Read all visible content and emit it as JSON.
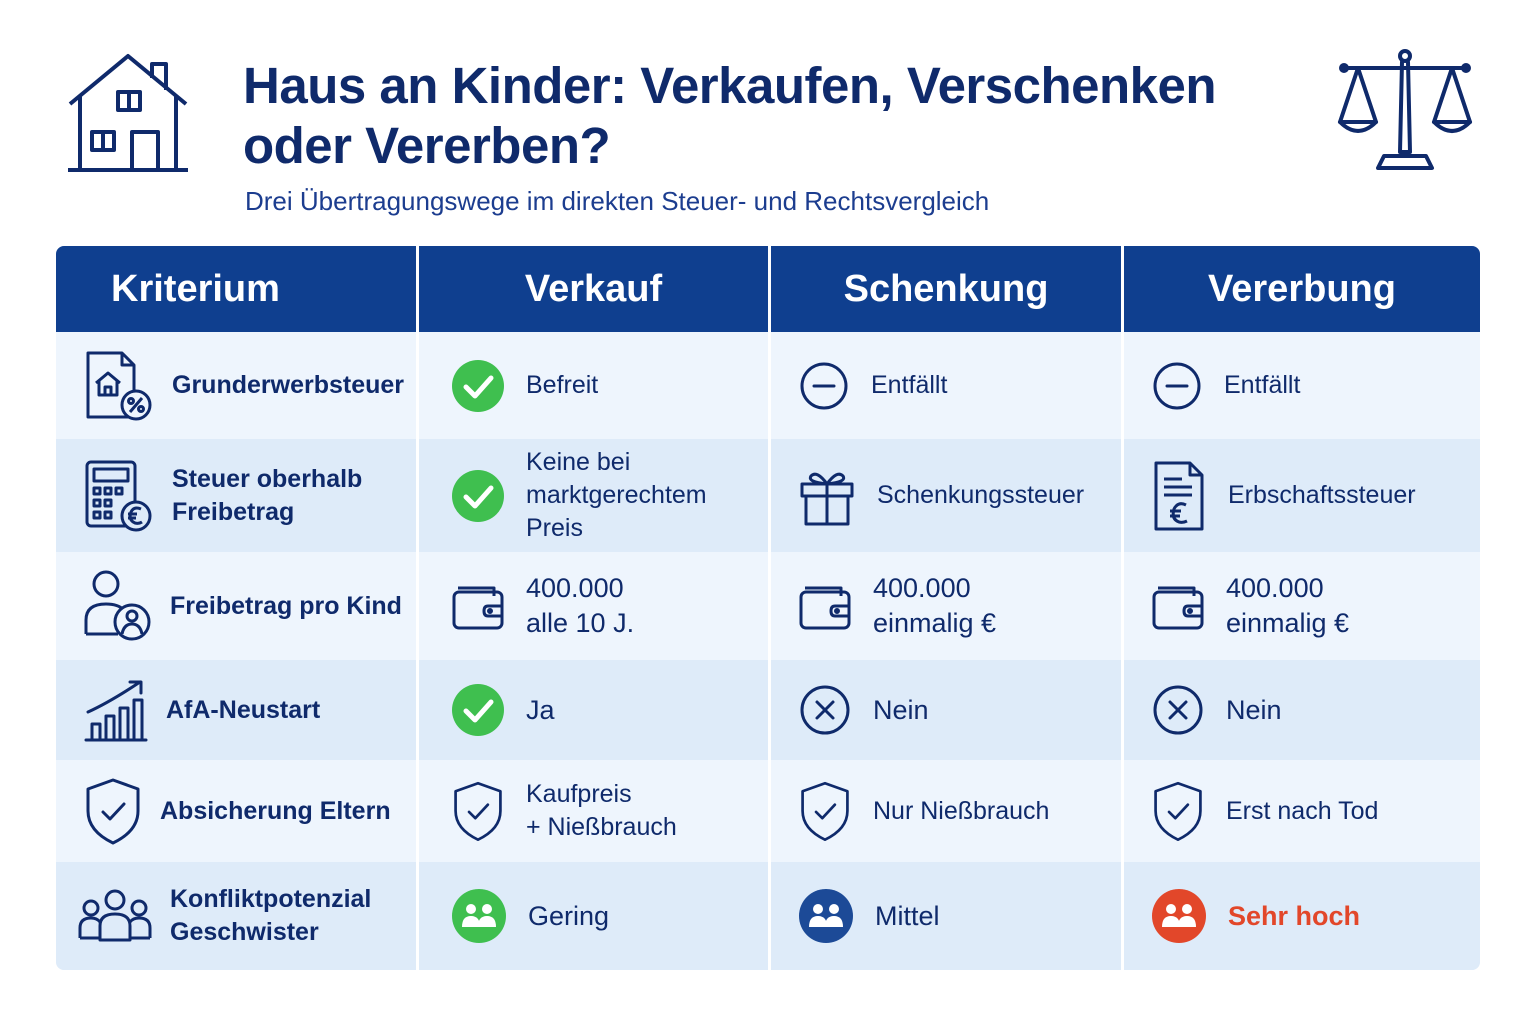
{
  "header": {
    "title": "Haus an Kinder: Verkaufen, Verschenken oder Vererben?",
    "subtitle": "Drei Übertragungswege im direkten Steuer- und Rechtsvergleich",
    "left_icon": "house-icon",
    "right_icon": "scale-icon"
  },
  "colors": {
    "navy": "#0f3f8f",
    "text": "#0f2a6b",
    "green": "#3fbf4f",
    "red": "#e2472a",
    "row_light": "#eef5fd",
    "row_dark": "#deebf9"
  },
  "table": {
    "columns": [
      "Kriterium",
      "Verkauf",
      "Schenkung",
      "Vererbung"
    ],
    "rows": [
      {
        "criterion": "Grunderwerbsteuer",
        "criterion_icon": "document-house-percent-icon",
        "cells": [
          {
            "icon": "check-green-icon",
            "text": "Befreit"
          },
          {
            "icon": "minus-circle-icon",
            "text": "Entfällt"
          },
          {
            "icon": "minus-circle-icon",
            "text": "Entfällt"
          }
        ]
      },
      {
        "criterion": "Steuer oberhalb\nFreibetrag",
        "criterion_icon": "calculator-euro-icon",
        "cells": [
          {
            "icon": "check-green-icon",
            "text": "Keine bei\nmarktgerechtem Preis"
          },
          {
            "icon": "gift-icon",
            "text": "Schenkungssteuer"
          },
          {
            "icon": "tax-document-euro-icon",
            "text": "Erbschaftssteuer"
          }
        ]
      },
      {
        "criterion": "Freibetrag pro Kind",
        "criterion_icon": "person-child-icon",
        "cells": [
          {
            "icon": "wallet-icon",
            "text": "400.000\nalle 10 J."
          },
          {
            "icon": "wallet-icon",
            "text": "400.000\neinmalig €"
          },
          {
            "icon": "wallet-icon",
            "text": "400.000\neinmalig €"
          }
        ]
      },
      {
        "criterion": "AfA-Neustart",
        "criterion_icon": "growth-chart-icon",
        "cells": [
          {
            "icon": "check-green-icon",
            "text": "Ja"
          },
          {
            "icon": "x-circle-icon",
            "text": "Nein"
          },
          {
            "icon": "x-circle-icon",
            "text": "Nein"
          }
        ]
      },
      {
        "criterion": "Absicherung Eltern",
        "criterion_icon": "shield-check-icon",
        "cells": [
          {
            "icon": "shield-check-icon",
            "text": "Kaufpreis\n+ Nießbrauch"
          },
          {
            "icon": "shield-check-icon",
            "text": "Nur Nießbrauch"
          },
          {
            "icon": "shield-check-icon",
            "text": "Erst nach Tod"
          }
        ]
      },
      {
        "criterion": "Konfliktpotenzial\nGeschwister",
        "criterion_icon": "group-icon",
        "cells": [
          {
            "icon": "people-green-icon",
            "text": "Gering"
          },
          {
            "icon": "people-navy-icon",
            "text": "Mittel"
          },
          {
            "icon": "people-red-icon",
            "text": "Sehr hoch"
          }
        ]
      }
    ]
  }
}
